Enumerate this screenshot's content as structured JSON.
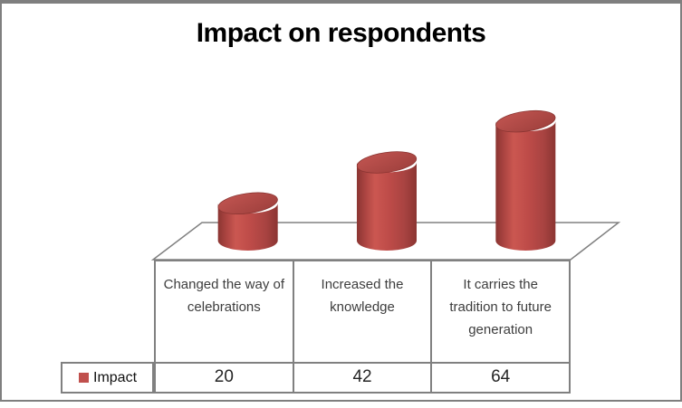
{
  "chart_data": {
    "type": "bar",
    "subtype": "3d-cylinder",
    "title": "Impact on respondents",
    "categories": [
      "Changed the way of celebrations",
      "Increased the knowledge",
      "It carries the tradition to future generation"
    ],
    "series": [
      {
        "name": "Impact",
        "values": [
          20,
          42,
          64
        ]
      }
    ],
    "value_axis": {
      "visible": false
    },
    "category_axis": {
      "visible": true
    },
    "grid": false,
    "legend_position": "bottom-left",
    "data_table_shown": true
  },
  "colors": {
    "series_fill": "#c0504d",
    "series_dark_edge": "#8b3532",
    "series_highlight": "#cb5751",
    "table_lines": "#808080",
    "frame_border": "#7f7f7f",
    "title_text": "#000000",
    "category_text": "#3d3d3d",
    "value_text": "#262626"
  }
}
